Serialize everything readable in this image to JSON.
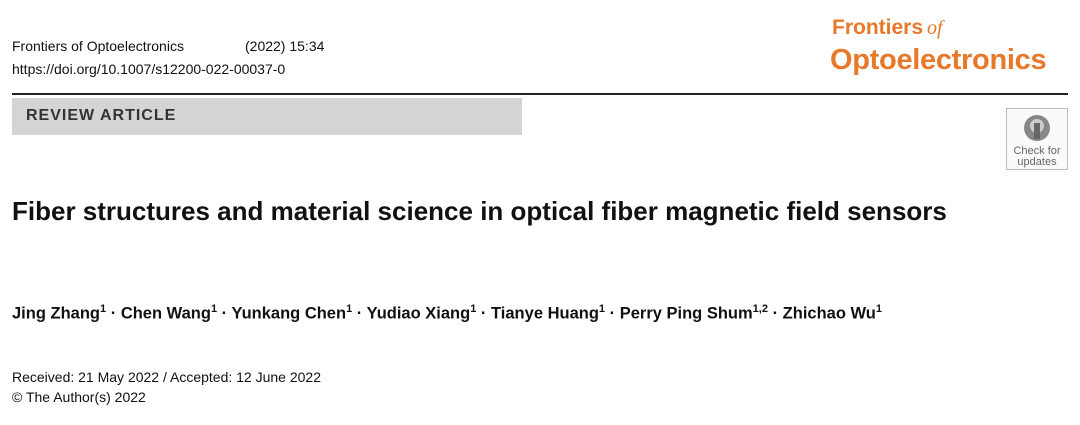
{
  "header": {
    "journal": "Frontiers of Optoelectronics",
    "citation": "(2022) 15:34",
    "doi": "https://doi.org/10.1007/s12200-022-00037-0",
    "logo": {
      "line1": "Frontiers",
      "of": "of",
      "line2": "Optoelectronics"
    }
  },
  "article_type": "REVIEW ARTICLE",
  "badge": {
    "line1": "Check for",
    "line2": "updates"
  },
  "title": "Fiber structures and material science in optical fiber magnetic field sensors",
  "separator": "·",
  "authors": [
    {
      "name": "Jing Zhang",
      "aff": "1"
    },
    {
      "name": "Chen Wang",
      "aff": "1"
    },
    {
      "name": "Yunkang Chen",
      "aff": "1"
    },
    {
      "name": "Yudiao Xiang",
      "aff": "1"
    },
    {
      "name": "Tianye Huang",
      "aff": "1"
    },
    {
      "name": "Perry Ping Shum",
      "aff": "1,2"
    },
    {
      "name": "Zhichao Wu",
      "aff": "1"
    }
  ],
  "dates": "Received: 21 May 2022 / Accepted: 12 June 2022",
  "copyright": "© The Author(s) 2022"
}
